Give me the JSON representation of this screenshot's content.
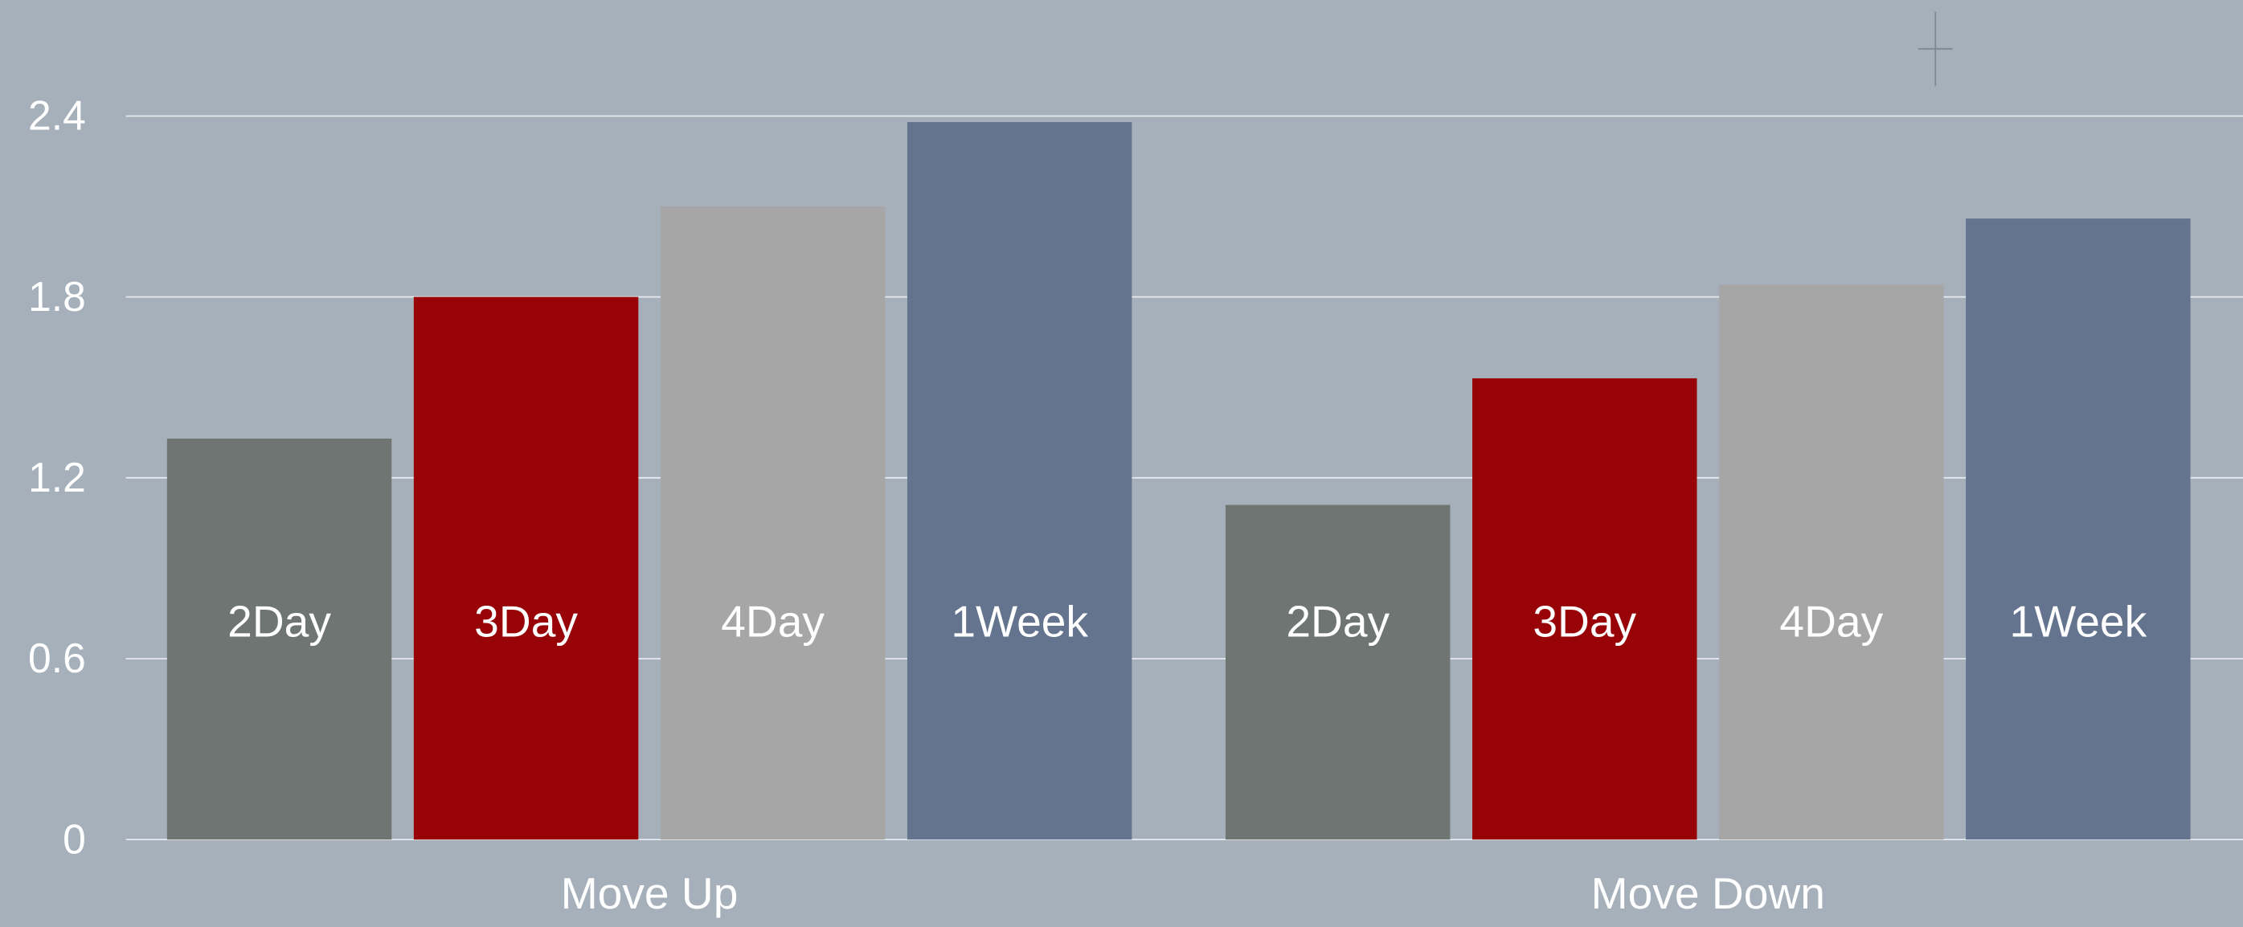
{
  "chart_data": {
    "type": "bar",
    "categories": [
      "Move Up",
      "Move Down"
    ],
    "series": [
      {
        "name": "2Day",
        "color": "#6e7572",
        "values": [
          1.33,
          1.11
        ]
      },
      {
        "name": "3Day",
        "color": "#970306",
        "values": [
          1.8,
          1.53
        ]
      },
      {
        "name": "4Day",
        "color": "#a6a6a6",
        "values": [
          2.1,
          1.84
        ]
      },
      {
        "name": "1Week",
        "color": "#65748e",
        "values": [
          2.38,
          2.06
        ]
      }
    ],
    "ylim": [
      0,
      2.4
    ],
    "yticks": [
      0,
      0.6,
      1.2,
      1.8,
      2.4
    ],
    "grid": true
  }
}
